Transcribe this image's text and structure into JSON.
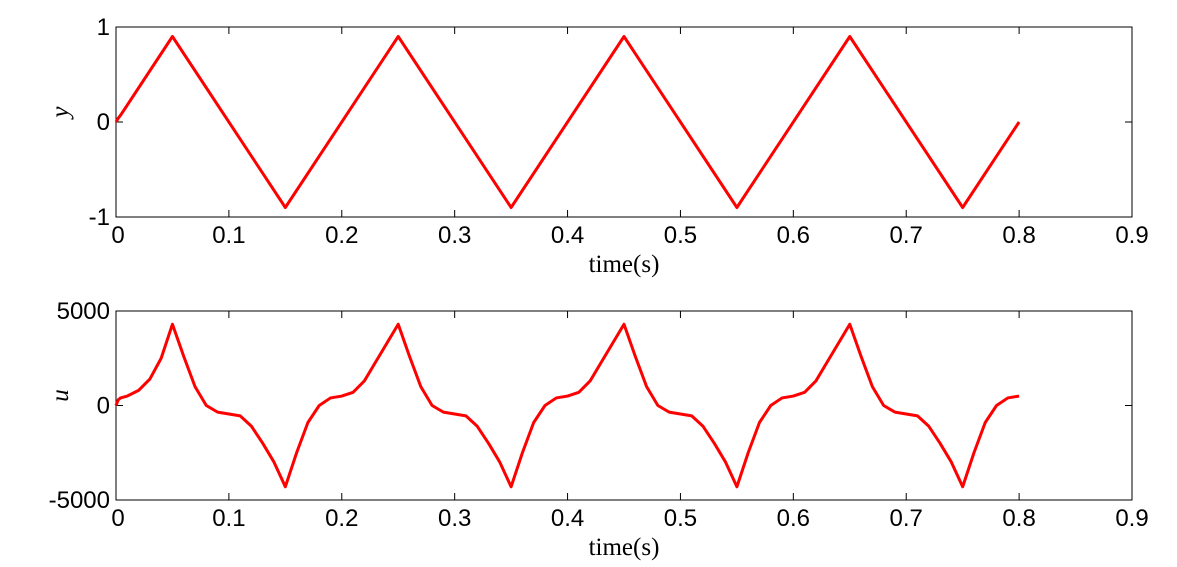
{
  "chart_data": [
    {
      "type": "line",
      "title": "",
      "xlabel": "time(s)",
      "ylabel": "y",
      "xlim": [
        0,
        0.9
      ],
      "ylim": [
        -1,
        1
      ],
      "xticks": [
        "0",
        "0.1",
        "0.2",
        "0.3",
        "0.4",
        "0.5",
        "0.6",
        "0.7",
        "0.8",
        "0.9"
      ],
      "yticks": [
        "-1",
        "0",
        "1"
      ],
      "grid": false,
      "legend": "none",
      "line_color": "#ff0000",
      "series": [
        {
          "x": [
            0,
            0.002,
            0.004,
            0.05,
            0.15,
            0.25,
            0.35,
            0.45,
            0.55,
            0.65,
            0.75,
            0.8
          ],
          "values": [
            0,
            0.04,
            0.07,
            0.9,
            -0.9,
            0.9,
            -0.9,
            0.9,
            -0.9,
            0.9,
            -0.9,
            0
          ]
        }
      ]
    },
    {
      "type": "line",
      "title": "",
      "xlabel": "time(s)",
      "ylabel": "u",
      "xlim": [
        0,
        0.9
      ],
      "ylim": [
        -5000,
        5000
      ],
      "xticks": [
        "0",
        "0.1",
        "0.2",
        "0.3",
        "0.4",
        "0.5",
        "0.6",
        "0.7",
        "0.8",
        "0.9"
      ],
      "yticks": [
        "-5000",
        "0",
        "5000"
      ],
      "grid": false,
      "legend": "none",
      "line_color": "#ff0000",
      "series": [
        {
          "x": [
            0,
            0.002,
            0.004,
            0.01,
            0.02,
            0.03,
            0.04,
            0.05,
            0.06,
            0.07,
            0.08,
            0.09,
            0.1,
            0.11,
            0.12,
            0.13,
            0.14,
            0.15,
            0.16,
            0.17,
            0.18,
            0.19,
            0.2,
            0.21,
            0.22,
            0.23,
            0.24,
            0.25,
            0.26,
            0.27,
            0.28,
            0.29,
            0.3,
            0.31,
            0.32,
            0.33,
            0.34,
            0.35,
            0.36,
            0.37,
            0.38,
            0.39,
            0.4,
            0.41,
            0.42,
            0.43,
            0.44,
            0.45,
            0.46,
            0.47,
            0.48,
            0.49,
            0.5,
            0.51,
            0.52,
            0.53,
            0.54,
            0.55,
            0.56,
            0.57,
            0.58,
            0.59,
            0.6,
            0.61,
            0.62,
            0.63,
            0.64,
            0.65,
            0.66,
            0.67,
            0.68,
            0.69,
            0.7,
            0.71,
            0.72,
            0.73,
            0.74,
            0.75,
            0.76,
            0.77,
            0.78,
            0.79,
            0.8
          ],
          "values": [
            0,
            300,
            400,
            500,
            800,
            1400,
            2500,
            4300,
            2600,
            1000,
            0,
            -350,
            -450,
            -550,
            -1100,
            -2000,
            -3000,
            -4300,
            -2500,
            -900,
            0,
            400,
            500,
            700,
            1300,
            2300,
            3300,
            4300,
            2600,
            1000,
            0,
            -350,
            -450,
            -550,
            -1100,
            -2000,
            -3000,
            -4300,
            -2500,
            -900,
            0,
            400,
            500,
            700,
            1300,
            2300,
            3300,
            4300,
            2600,
            1000,
            0,
            -350,
            -450,
            -550,
            -1100,
            -2000,
            -3000,
            -4300,
            -2500,
            -900,
            0,
            400,
            500,
            700,
            1300,
            2300,
            3300,
            4300,
            2600,
            1000,
            0,
            -350,
            -450,
            -550,
            -1100,
            -2000,
            -3000,
            -4300,
            -2500,
            -900,
            0,
            400,
            500
          ]
        }
      ]
    }
  ]
}
